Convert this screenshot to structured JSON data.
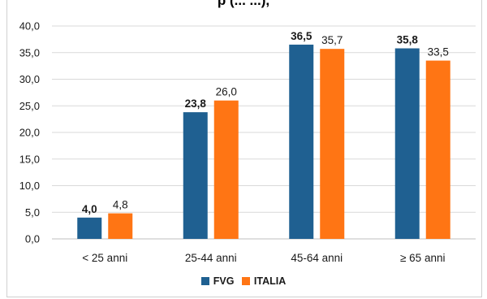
{
  "title_fragment": "p (... ...),",
  "colors": {
    "FVG": "#1f6091",
    "ITALIA": "#ff7514",
    "grid": "#d9d9d9",
    "axis": "#bfbfbf"
  },
  "chart_data": {
    "type": "bar",
    "categories": [
      "< 25 anni",
      "25-44 anni",
      "45-64 anni",
      "≥ 65 anni"
    ],
    "series": [
      {
        "name": "FVG",
        "values": [
          4.0,
          23.8,
          36.5,
          35.8
        ],
        "labels": [
          "4,0",
          "23,8",
          "36,5",
          "35,8"
        ]
      },
      {
        "name": "ITALIA",
        "values": [
          4.8,
          26.0,
          35.7,
          33.5
        ],
        "labels": [
          "4,8",
          "26,0",
          "35,7",
          "33,5"
        ]
      }
    ],
    "ylim": [
      0,
      40
    ],
    "yticks": [
      "0,0",
      "5,0",
      "10,0",
      "15,0",
      "20,0",
      "25,0",
      "30,0",
      "35,0",
      "40,0"
    ],
    "grid": true,
    "legend": "bottom"
  }
}
